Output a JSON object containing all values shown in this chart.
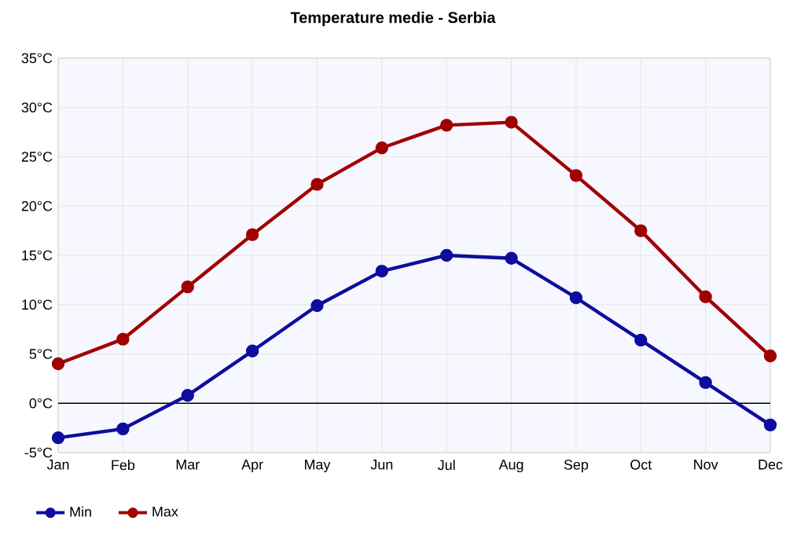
{
  "chart_data": {
    "type": "line",
    "title": "Temperature medie - Serbia",
    "categories": [
      "Jan",
      "Feb",
      "Mar",
      "Apr",
      "May",
      "Jun",
      "Jul",
      "Aug",
      "Sep",
      "Oct",
      "Nov",
      "Dec"
    ],
    "series": [
      {
        "name": "Min",
        "color": "#0d0d9e",
        "values": [
          -3.5,
          -2.6,
          0.8,
          5.3,
          9.9,
          13.4,
          15.0,
          14.7,
          10.7,
          6.4,
          2.1,
          -2.2
        ]
      },
      {
        "name": "Max",
        "color": "#a00000",
        "values": [
          4.0,
          6.5,
          11.8,
          17.1,
          22.2,
          25.9,
          28.2,
          28.5,
          23.1,
          17.5,
          10.8,
          4.8
        ]
      }
    ],
    "ylim": [
      -5,
      35
    ],
    "yticks": [
      {
        "value": -5,
        "label": "-5°C"
      },
      {
        "value": 0,
        "label": "0°C"
      },
      {
        "value": 5,
        "label": "5°C"
      },
      {
        "value": 10,
        "label": "10°C"
      },
      {
        "value": 15,
        "label": "15°C"
      },
      {
        "value": 20,
        "label": "20°C"
      },
      {
        "value": 25,
        "label": "25°C"
      },
      {
        "value": 30,
        "label": "30°C"
      },
      {
        "value": 35,
        "label": "35°C"
      }
    ],
    "ref_lines": [
      {
        "axis": "y",
        "value": 0,
        "color": "#000000"
      }
    ],
    "grid": true,
    "legend": "bottom left",
    "marker": "circle",
    "line_style": "solid"
  }
}
